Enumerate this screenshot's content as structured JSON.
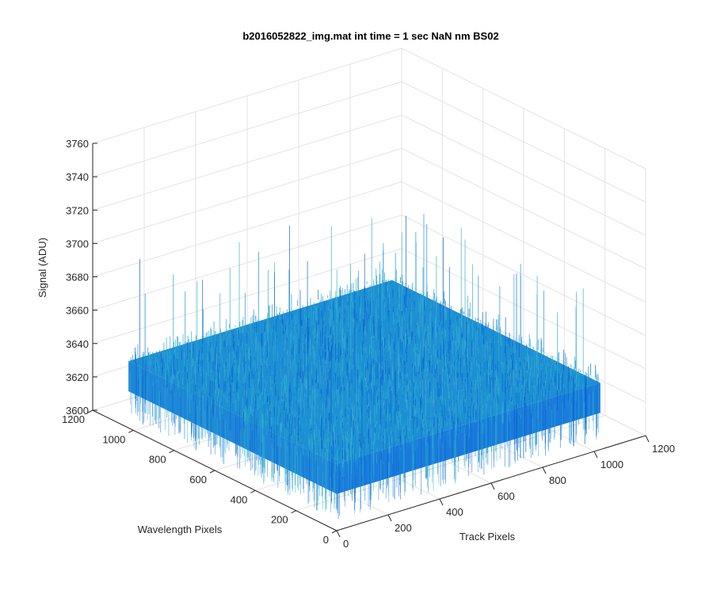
{
  "chart_data": {
    "type": "surface",
    "title": "b2016052822_img.mat int time = 1 sec  NaN nm BS02",
    "xlabel": "Track Pixels",
    "ylabel": "Wavelength Pixels",
    "zlabel": "Signal (ADU)",
    "xlim": [
      0,
      1200
    ],
    "ylim": [
      0,
      1200
    ],
    "zlim": [
      3600,
      3760
    ],
    "x_ticks": [
      0,
      200,
      400,
      600,
      800,
      1000,
      1200
    ],
    "y_ticks": [
      0,
      200,
      400,
      600,
      800,
      1000,
      1200
    ],
    "z_ticks": [
      3600,
      3620,
      3640,
      3660,
      3680,
      3700,
      3720,
      3740,
      3760
    ],
    "data_extent": {
      "x": [
        0,
        1024
      ],
      "y": [
        0,
        1024
      ]
    },
    "signal_mean": 3640,
    "signal_noise_range": [
      3615,
      3700
    ],
    "grid": true,
    "view": "3d",
    "colors": {
      "surface_low": "#0a62d6",
      "surface_mid": "#1f8fd3",
      "surface_high": "#2fb3c8",
      "axis": "#262626",
      "grid": "#e3e3e3"
    }
  }
}
